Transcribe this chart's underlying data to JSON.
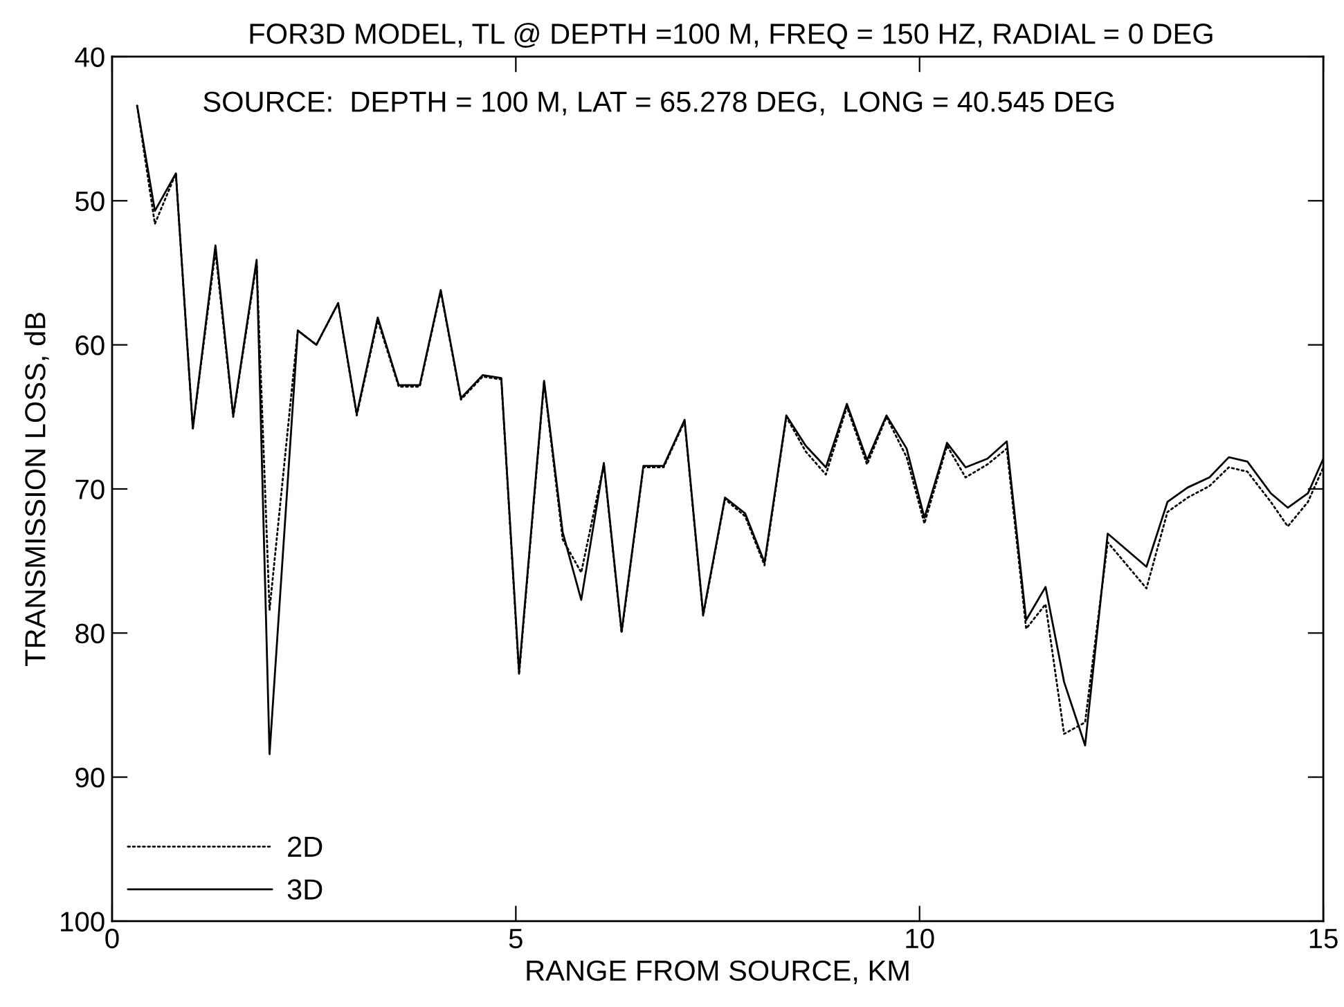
{
  "chart_data": {
    "type": "line",
    "title": "FOR3D MODEL, TL @ DEPTH =100 M, FREQ = 150 HZ, RADIAL = 0 DEG",
    "xlabel": "RANGE FROM SOURCE, KM",
    "ylabel": "TRANSMISSION LOSS, dB",
    "annotations": [
      "SOURCE:  DEPTH = 100 M, LAT = 65.278 DEG,  LONG = 40.545 DEG"
    ],
    "x": [
      0.31,
      0.53,
      0.79,
      1.0,
      1.28,
      1.5,
      1.79,
      1.95,
      2.3,
      2.53,
      2.8,
      3.03,
      3.29,
      3.55,
      3.81,
      4.07,
      4.32,
      4.59,
      4.82,
      5.04,
      5.35,
      5.58,
      5.81,
      6.09,
      6.31,
      6.58,
      6.83,
      7.09,
      7.32,
      7.59,
      7.84,
      8.08,
      8.35,
      8.59,
      8.84,
      9.1,
      9.35,
      9.59,
      9.84,
      10.06,
      10.34,
      10.57,
      10.84,
      11.08,
      11.32,
      11.56,
      11.79,
      12.05,
      12.33,
      12.81,
      13.07,
      13.32,
      13.59,
      13.83,
      14.06,
      14.35,
      14.56,
      14.81,
      15.0
    ],
    "series": [
      {
        "name": "2D",
        "color": "#000000",
        "line_style": "dotted",
        "values": [
          43.4,
          51.6,
          48.1,
          65.8,
          53.5,
          65.0,
          54.3,
          78.4,
          59.0,
          60.0,
          57.1,
          64.9,
          58.3,
          62.9,
          62.9,
          56.3,
          63.8,
          62.2,
          62.4,
          82.9,
          62.6,
          73.5,
          75.8,
          68.3,
          80.0,
          68.5,
          68.5,
          65.3,
          78.8,
          70.7,
          71.9,
          75.3,
          65.0,
          67.4,
          69.0,
          64.3,
          68.3,
          65.0,
          67.8,
          72.4,
          67.0,
          69.2,
          68.3,
          67.2,
          79.7,
          78.0,
          87.0,
          86.2,
          73.7,
          76.9,
          71.6,
          70.6,
          69.8,
          68.5,
          68.8,
          70.9,
          72.6,
          70.9,
          68.5
        ]
      },
      {
        "name": "3D",
        "color": "#000000",
        "line_style": "solid",
        "values": [
          43.4,
          50.7,
          48.1,
          65.8,
          53.1,
          64.9,
          54.1,
          88.4,
          59.0,
          60.0,
          57.1,
          64.8,
          58.1,
          62.8,
          62.8,
          56.2,
          63.7,
          62.1,
          62.3,
          82.7,
          62.5,
          73.0,
          77.7,
          68.2,
          79.9,
          68.4,
          68.4,
          65.2,
          78.7,
          70.6,
          71.7,
          75.1,
          64.9,
          67.0,
          68.5,
          64.1,
          68.0,
          64.9,
          67.2,
          72.0,
          66.8,
          68.5,
          67.9,
          66.7,
          79.1,
          76.8,
          83.4,
          87.8,
          73.1,
          75.4,
          70.9,
          69.9,
          69.2,
          67.8,
          68.1,
          70.3,
          71.3,
          70.3,
          67.9
        ]
      }
    ],
    "xlim": [
      0,
      15
    ],
    "xticks": [
      0,
      5,
      10,
      15
    ],
    "ylim": [
      100,
      40
    ],
    "yticks": [
      40,
      50,
      60,
      70,
      80,
      90,
      100
    ],
    "legend": "bottom left"
  }
}
